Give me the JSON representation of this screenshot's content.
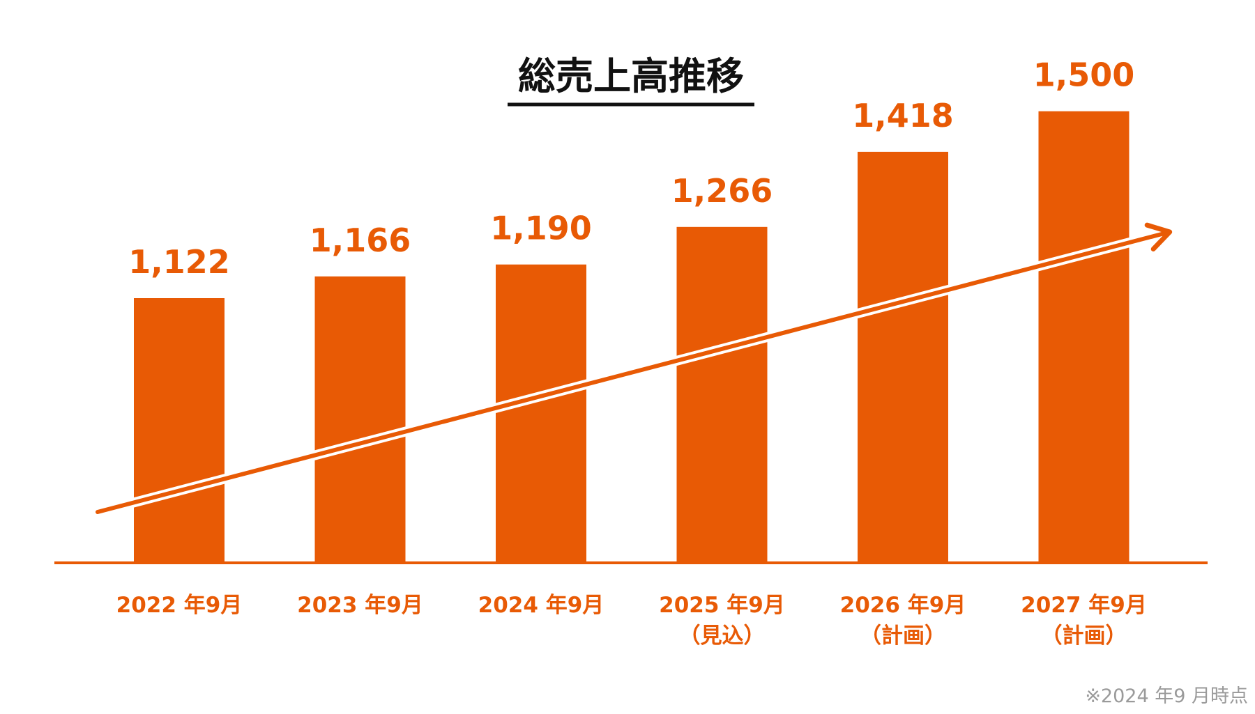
{
  "chart_data": {
    "type": "bar",
    "title": "総売上高推移",
    "categories": [
      {
        "line1": "2022 年9月",
        "line2": ""
      },
      {
        "line1": "2023 年9月",
        "line2": ""
      },
      {
        "line1": "2024 年9月",
        "line2": ""
      },
      {
        "line1": "2025 年9月",
        "line2": "（見込）"
      },
      {
        "line1": "2026 年9月",
        "line2": "（計画）"
      },
      {
        "line1": "2027 年9月",
        "line2": "（計画）"
      }
    ],
    "values": [
      1122,
      1166,
      1190,
      1266,
      1418,
      1500
    ],
    "value_labels": [
      "1,122",
      "1,166",
      "1,190",
      "1,266",
      "1,418",
      "1,500"
    ],
    "trend_arrow": true,
    "grid": false,
    "legend": "none",
    "note": "※2024 年9 月時点",
    "colors": {
      "bar": "#E85A05",
      "title": "#111111",
      "note": "#9a9a9a"
    }
  }
}
